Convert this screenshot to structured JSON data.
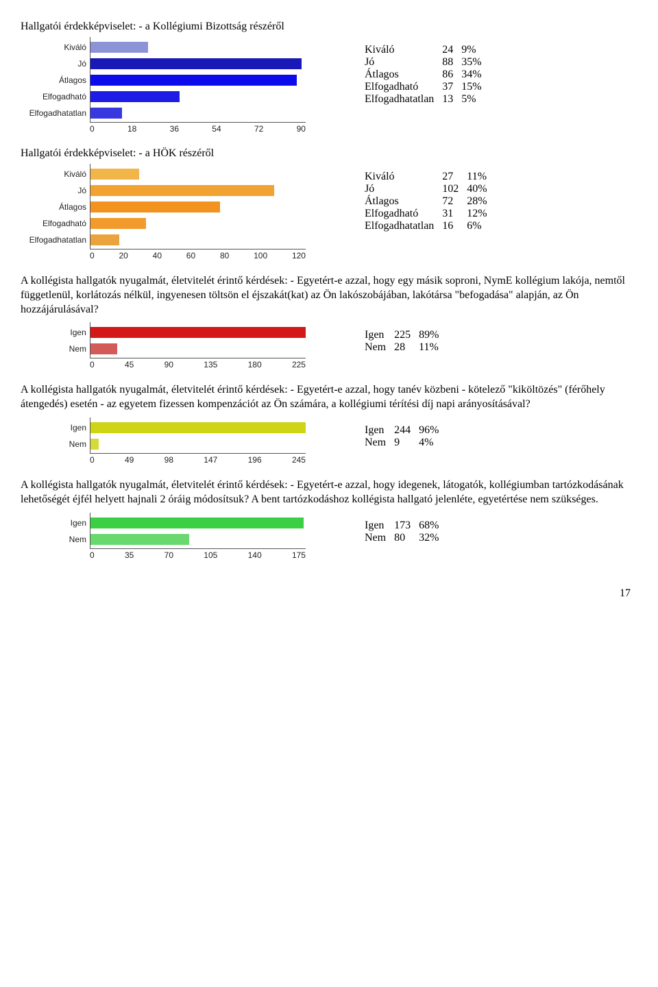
{
  "page_number": "17",
  "sections": [
    {
      "title": "Hallgatói érdekképviselet: - a Kollégiumi Bizottság részéről",
      "chart": {
        "type": "bar-horizontal",
        "max": 90,
        "ticks": [
          "0",
          "18",
          "36",
          "54",
          "72",
          "90"
        ],
        "background": "#ffffff",
        "axis_color": "#555555",
        "label_font": "Arial",
        "label_fontsize": 12,
        "bars": [
          {
            "label": "Kiváló",
            "value": 24,
            "color": "#8c94d6"
          },
          {
            "label": "Jó",
            "value": 88,
            "color": "#1919b8"
          },
          {
            "label": "Átlagos",
            "value": 86,
            "color": "#0b0bec"
          },
          {
            "label": "Elfogadható",
            "value": 37,
            "color": "#1d1de6"
          },
          {
            "label": "Elfogadhatatlan",
            "value": 13,
            "color": "#3838e0"
          }
        ]
      },
      "table": [
        [
          "Kiváló",
          "24",
          "9%"
        ],
        [
          "Jó",
          "88",
          "35%"
        ],
        [
          "Átlagos",
          "86",
          "34%"
        ],
        [
          "Elfogadható",
          "37",
          "15%"
        ],
        [
          "Elfogadhatatlan",
          "13",
          "5%"
        ]
      ]
    },
    {
      "title": "Hallgatói érdekképviselet: - a HÖK részéről",
      "chart": {
        "type": "bar-horizontal",
        "max": 120,
        "ticks": [
          "0",
          "20",
          "40",
          "60",
          "80",
          "100",
          "120"
        ],
        "background": "#ffffff",
        "axis_color": "#555555",
        "label_font": "Arial",
        "label_fontsize": 12,
        "bars": [
          {
            "label": "Kiváló",
            "value": 27,
            "color": "#f2b54a"
          },
          {
            "label": "Jó",
            "value": 102,
            "color": "#f2a230"
          },
          {
            "label": "Átlagos",
            "value": 72,
            "color": "#f2921f"
          },
          {
            "label": "Elfogadható",
            "value": 31,
            "color": "#f29b2c"
          },
          {
            "label": "Elfogadhatatlan",
            "value": 16,
            "color": "#eba33d"
          }
        ]
      },
      "table": [
        [
          "Kiváló",
          "27",
          "11%"
        ],
        [
          "Jó",
          "102",
          "40%"
        ],
        [
          "Átlagos",
          "72",
          "28%"
        ],
        [
          "Elfogadható",
          "31",
          "12%"
        ],
        [
          "Elfogadhatatlan",
          "16",
          "6%"
        ]
      ]
    },
    {
      "title": "A kollégista hallgatók nyugalmát, életvitelét érintő kérdések: - Egyetért-e azzal, hogy egy másik soproni, NymE kollégium lakója, nemtől függetlenül, korlátozás nélkül, ingyenesen töltsön el éjszakát(kat) az Ön lakószobájában, lakótársa \"befogadása\" alapján, az Ön hozzájárulásával?",
      "chart": {
        "type": "bar-horizontal",
        "max": 225,
        "ticks": [
          "0",
          "45",
          "90",
          "135",
          "180",
          "225"
        ],
        "background": "#ffffff",
        "axis_color": "#555555",
        "label_font": "Arial",
        "label_fontsize": 12,
        "bars": [
          {
            "label": "Igen",
            "value": 225,
            "color": "#d41818"
          },
          {
            "label": "Nem",
            "value": 28,
            "color": "#d45a5a"
          }
        ]
      },
      "table": [
        [
          "Igen",
          "225",
          "89%"
        ],
        [
          "Nem",
          "28",
          "11%"
        ]
      ]
    },
    {
      "title": "A kollégista hallgatók nyugalmát, életvitelét érintő kérdések: - Egyetért-e azzal, hogy tanév közbeni - kötelező \"kiköltözés\" (férőhely átengedés) esetén - az egyetem fizessen kompenzációt az Ön számára, a kollégiumi térítési díj napi arányosításával?",
      "chart": {
        "type": "bar-horizontal",
        "max": 245,
        "ticks": [
          "0",
          "49",
          "98",
          "147",
          "196",
          "245"
        ],
        "background": "#ffffff",
        "axis_color": "#555555",
        "label_font": "Arial",
        "label_fontsize": 12,
        "bars": [
          {
            "label": "Igen",
            "value": 244,
            "color": "#cfd414"
          },
          {
            "label": "Nem",
            "value": 9,
            "color": "#d6d93a"
          }
        ]
      },
      "table": [
        [
          "Igen",
          "244",
          "96%"
        ],
        [
          "Nem",
          "9",
          "4%"
        ]
      ]
    },
    {
      "title": "A kollégista hallgatók nyugalmát, életvitelét érintő kérdések: - Egyetért-e azzal, hogy idegenek, látogatók, kollégiumban tartózkodásának lehetőségét éjfél helyett hajnali 2 óráig módosítsuk? A bent tartózkodáshoz kollégista hallgató jelenléte, egyetértése nem szükséges.",
      "chart": {
        "type": "bar-horizontal",
        "max": 175,
        "ticks": [
          "0",
          "35",
          "70",
          "105",
          "140",
          "175"
        ],
        "background": "#ffffff",
        "axis_color": "#555555",
        "label_font": "Arial",
        "label_fontsize": 12,
        "bars": [
          {
            "label": "Igen",
            "value": 173,
            "color": "#3bcf45"
          },
          {
            "label": "Nem",
            "value": 80,
            "color": "#69d96f"
          }
        ]
      },
      "table": [
        [
          "Igen",
          "173",
          "68%"
        ],
        [
          "Nem",
          "80",
          "32%"
        ]
      ]
    }
  ]
}
